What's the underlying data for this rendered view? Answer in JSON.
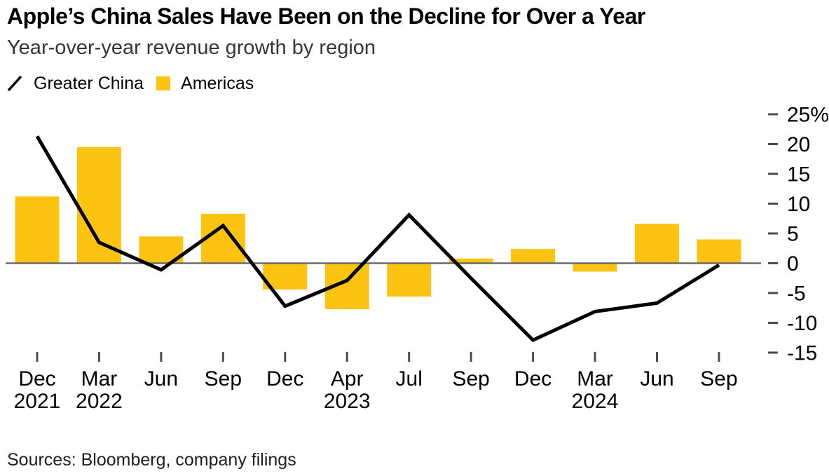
{
  "header": {
    "title": "Apple’s China Sales Have Been on the Decline for Over a Year",
    "subtitle": "Year-over-year revenue growth by region"
  },
  "legend": {
    "items": [
      {
        "label": "Greater China",
        "mark": "line-mark",
        "color": "#000000"
      },
      {
        "label": "Americas",
        "mark": "square-swatch",
        "color": "#FDC313"
      }
    ]
  },
  "footer": {
    "source": "Sources: Bloomberg, company filings"
  },
  "chart_data": {
    "type": "bar",
    "subtype": "bar+line combo",
    "categories": [
      "Dec 2021",
      "Mar 2022",
      "Jun",
      "Sep",
      "Dec",
      "Apr 2023",
      "Jul",
      "Sep",
      "Dec",
      "Mar 2024",
      "Jun",
      "Sep"
    ],
    "x_labels": [
      {
        "month": "Dec",
        "year": "2021"
      },
      {
        "month": "Mar",
        "year": "2022"
      },
      {
        "month": "Jun",
        "year": ""
      },
      {
        "month": "Sep",
        "year": ""
      },
      {
        "month": "Dec",
        "year": ""
      },
      {
        "month": "Apr",
        "year": "2023"
      },
      {
        "month": "Jul",
        "year": ""
      },
      {
        "month": "Sep",
        "year": ""
      },
      {
        "month": "Dec",
        "year": ""
      },
      {
        "month": "Mar",
        "year": "2024"
      },
      {
        "month": "Jun",
        "year": ""
      },
      {
        "month": "Sep",
        "year": ""
      }
    ],
    "series": [
      {
        "name": "Greater China",
        "type": "line",
        "color": "#000000",
        "values": [
          21.3,
          3.5,
          -1.1,
          6.3,
          -7.2,
          -2.9,
          8.1,
          -2.5,
          -12.9,
          -8.1,
          -6.7,
          -0.3
        ]
      },
      {
        "name": "Americas",
        "type": "bar",
        "color": "#FDC313",
        "values": [
          11.2,
          19.5,
          4.5,
          8.3,
          -4.4,
          -7.7,
          -5.6,
          0.8,
          2.4,
          -1.4,
          6.6,
          4.0
        ]
      }
    ],
    "title": "Apple’s China Sales Have Been on the Decline for Over a Year",
    "xlabel": "",
    "ylabel": "Year-over-year revenue growth (%)",
    "ylim": [
      -15,
      25
    ],
    "y_ticks": [
      25,
      20,
      15,
      10,
      5,
      0,
      -5,
      -10,
      -15
    ],
    "y_tick_labels": [
      "25%",
      "20",
      "15",
      "10",
      "5",
      "0",
      "-5",
      "-10",
      "-15"
    ],
    "y_axis_side": "right",
    "grid": false,
    "legend_position": "top-left"
  },
  "style": {
    "bar_yellow": "#FDC313",
    "line_black": "#000000",
    "zero_axis_gray": "#6B6B6B",
    "tick_gray": "#4D4D4D"
  }
}
